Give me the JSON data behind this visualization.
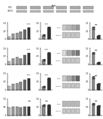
{
  "background_color": "#ffffff",
  "top_blot": {
    "lanes": 6,
    "band1_fc": "#aaaaaa",
    "band2_fc": "#bbbbbb",
    "ec": "#666666",
    "lw": 0.3
  },
  "bar_groups": [
    {
      "row": 0,
      "col": 0,
      "bars": [
        0.25,
        0.45,
        0.55,
        0.65,
        0.8,
        1.0
      ],
      "colors": [
        "#bbbbbb",
        "#999999",
        "#999999",
        "#888888",
        "#666666",
        "#333333"
      ],
      "ylim": [
        0,
        1.4
      ],
      "star": "***"
    },
    {
      "row": 0,
      "col": 1,
      "bars": [
        0.35,
        1.0
      ],
      "colors": [
        "#888888",
        "#333333"
      ],
      "ylim": [
        0,
        1.4
      ],
      "star": "***"
    },
    {
      "row": 0,
      "col": 3,
      "bars": [
        0.9,
        0.25
      ],
      "colors": [
        "#888888",
        "#333333"
      ],
      "ylim": [
        0,
        1.3
      ],
      "star": "ns"
    },
    {
      "row": 1,
      "col": 0,
      "bars": [
        0.3,
        0.5,
        0.65,
        0.55,
        0.8,
        1.0
      ],
      "colors": [
        "#bbbbbb",
        "#999999",
        "#999999",
        "#888888",
        "#666666",
        "#333333"
      ],
      "ylim": [
        0,
        1.4
      ],
      "star": "***"
    },
    {
      "row": 1,
      "col": 1,
      "bars": [
        0.4,
        1.0
      ],
      "colors": [
        "#888888",
        "#333333"
      ],
      "ylim": [
        0,
        1.4
      ],
      "star": "***"
    },
    {
      "row": 1,
      "col": 3,
      "bars": [
        0.9,
        0.15
      ],
      "colors": [
        "#888888",
        "#333333"
      ],
      "ylim": [
        0,
        1.3
      ],
      "star": "ns"
    },
    {
      "row": 2,
      "col": 0,
      "bars": [
        0.35,
        0.5,
        0.6,
        0.7,
        0.85,
        1.0
      ],
      "colors": [
        "#bbbbbb",
        "#999999",
        "#999999",
        "#888888",
        "#666666",
        "#333333"
      ],
      "ylim": [
        0,
        1.4
      ],
      "star": "***"
    },
    {
      "row": 2,
      "col": 1,
      "bars": [
        0.3,
        1.0
      ],
      "colors": [
        "#888888",
        "#333333"
      ],
      "ylim": [
        0,
        1.4
      ],
      "star": "***"
    },
    {
      "row": 2,
      "col": 3,
      "bars": [
        1.0,
        0.5
      ],
      "colors": [
        "#888888",
        "#333333"
      ],
      "ylim": [
        0,
        1.3
      ],
      "star": "ns"
    },
    {
      "row": 3,
      "col": 0,
      "bars": [
        0.5,
        0.55,
        0.55,
        0.5,
        0.55,
        0.55
      ],
      "colors": [
        "#bbbbbb",
        "#999999",
        "#999999",
        "#888888",
        "#666666",
        "#333333"
      ],
      "ylim": [
        0,
        1.0
      ],
      "star": "ns"
    },
    {
      "row": 3,
      "col": 1,
      "bars": [
        0.85,
        0.85
      ],
      "colors": [
        "#888888",
        "#333333"
      ],
      "ylim": [
        0,
        1.4
      ],
      "star": "ns"
    },
    {
      "row": 3,
      "col": 3,
      "bars": [
        0.9,
        0.75
      ],
      "colors": [
        "#888888",
        "#333333"
      ],
      "ylim": [
        0,
        1.3
      ],
      "star": "ns"
    }
  ],
  "blot_panels": [
    {
      "row": 0,
      "lane_colors_top": [
        "#cccccc",
        "#bbbbbb",
        "#aaaaaa",
        "#999999"
      ],
      "lane_colors_bot": [
        "#c8c8c8",
        "#c8c8c8",
        "#c8c8c8",
        "#c8c8c8"
      ]
    },
    {
      "row": 1,
      "lane_colors_top": [
        "#dddddd",
        "#aaaaaa",
        "#888888",
        "#777777"
      ],
      "lane_colors_bot": [
        "#c8c8c8",
        "#c8c8c8",
        "#c8c8c8",
        "#c8c8c8"
      ]
    },
    {
      "row": 2,
      "lane_colors_top": [
        "#cccccc",
        "#aaaaaa",
        "#888888",
        "#666666"
      ],
      "lane_colors_bot": [
        "#c8c8c8",
        "#c8c8c8",
        "#c8c8c8",
        "#c8c8c8"
      ]
    },
    {
      "row": 3,
      "lane_colors_top": [
        "#bbbbbb",
        "#bbbbbb",
        "#bbbbbb",
        "#bbbbbb"
      ],
      "lane_colors_bot": [
        "#c8c8c8",
        "#c8c8c8",
        "#c8c8c8",
        "#c8c8c8"
      ]
    }
  ],
  "gray_light": "#dddddd",
  "gray_mid": "#aaaaaa",
  "gray_dark": "#555555",
  "ec_color": "#444444"
}
